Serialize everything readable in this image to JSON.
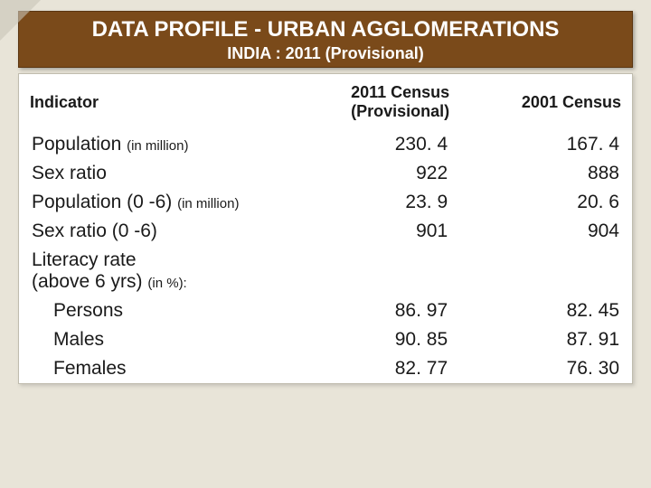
{
  "header": {
    "title": "DATA PROFILE - URBAN AGGLOMERATIONS",
    "subtitle": "INDIA : 2011 (Provisional)"
  },
  "columns": {
    "c0": "Indicator",
    "c1": "2011 Census (Provisional)",
    "c2": "2001 Census"
  },
  "rows": {
    "r0": {
      "label_a": "Population ",
      "label_b": "(in million)",
      "v1": "230. 4",
      "v2": "167. 4"
    },
    "r1": {
      "label_a": "Sex ratio",
      "label_b": "",
      "v1": "922",
      "v2": "888"
    },
    "r2": {
      "label_a": "Population (0 -6) ",
      "label_b": "(in million)",
      "v1": "23. 9",
      "v2": "20. 6"
    },
    "r3": {
      "label_a": "Sex ratio (0 -6)",
      "label_b": "",
      "v1": "901",
      "v2": "904"
    },
    "r4": {
      "label_a": "Literacy rate",
      "label_a2": "(above 6 yrs) ",
      "label_b": "(in %):",
      "v1": "",
      "v2": ""
    },
    "r5": {
      "label_a": "Persons",
      "v1": "86. 97",
      "v2": "82. 45"
    },
    "r6": {
      "label_a": "Males",
      "v1": "90. 85",
      "v2": "87. 91"
    },
    "r7": {
      "label_a": "Females",
      "v1": "82. 77",
      "v2": "76. 30"
    }
  },
  "colors": {
    "header_bg": "#7a4a1a",
    "header_text": "#ffffff",
    "body_bg": "#e8e4d8",
    "table_bg": "#ffffff",
    "text": "#1a1a1a"
  }
}
